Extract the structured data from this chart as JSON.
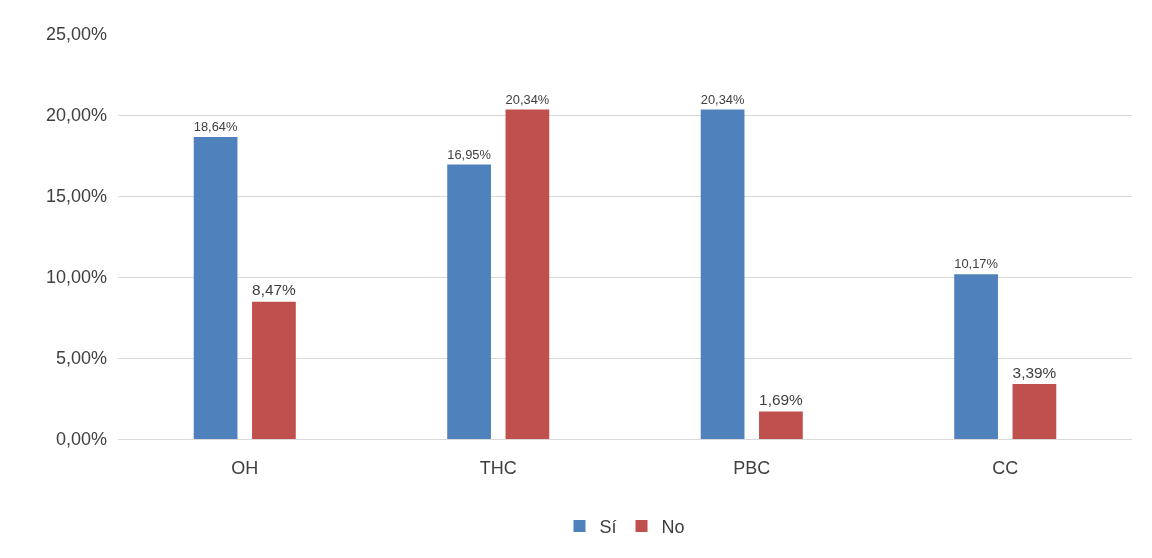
{
  "chart_data": {
    "type": "bar",
    "categories": [
      "OH",
      "THC",
      "PBC",
      "CC"
    ],
    "series": [
      {
        "name": "Sí",
        "color": "#4f81bd",
        "values": [
          18.64,
          16.95,
          20.34,
          10.17
        ],
        "value_labels": [
          "18,64%",
          "16,95%",
          "20,34%",
          "10,17%"
        ]
      },
      {
        "name": "No",
        "color": "#c0504d",
        "values": [
          8.47,
          20.34,
          1.69,
          3.39
        ],
        "value_labels": [
          "8,47%",
          "20,34%",
          "1,69%",
          "3,39%"
        ]
      }
    ],
    "ylim": [
      0,
      25
    ],
    "yticks": [
      {
        "value": 0,
        "label": "0,00%"
      },
      {
        "value": 5,
        "label": "5,00%"
      },
      {
        "value": 10,
        "label": "10,00%"
      },
      {
        "value": 15,
        "label": "15,00%"
      },
      {
        "value": 20,
        "label": "20,00%"
      },
      {
        "value": 25,
        "label": "25,00%"
      }
    ],
    "grid": "y",
    "legend": "bottom"
  }
}
